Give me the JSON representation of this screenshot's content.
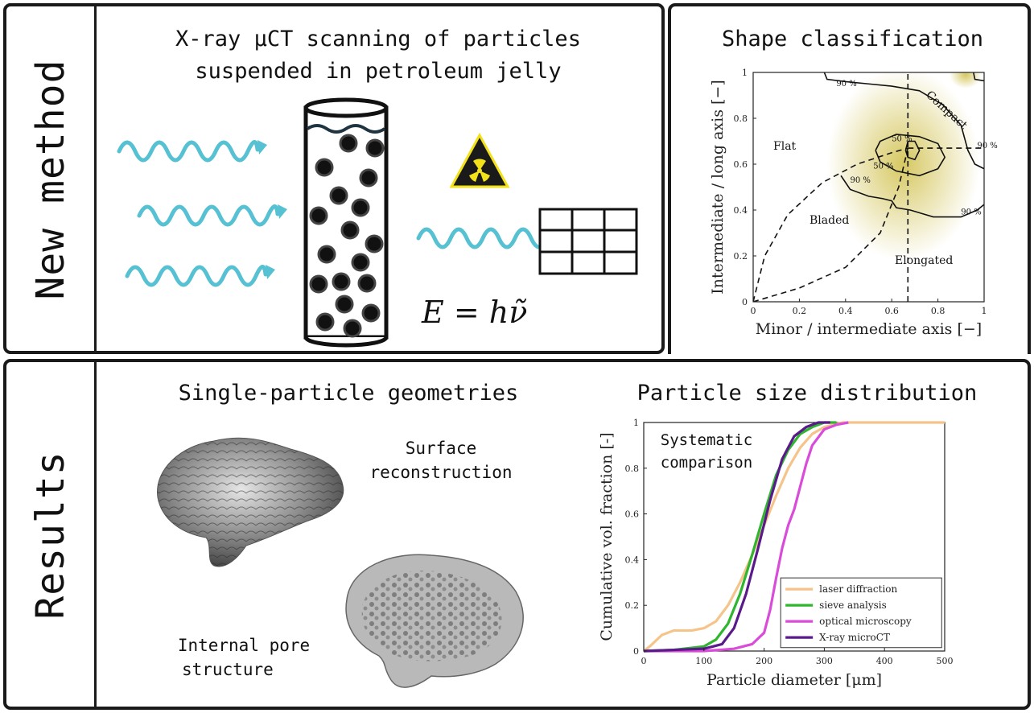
{
  "top_left": {
    "side_label": "New method",
    "heading_line1": "X-ray μCT scanning of particles",
    "heading_line2": "suspended in petroleum jelly",
    "formula": "E = hν̃"
  },
  "top_right": {
    "heading": "Shape classification",
    "region_labels": {
      "flat": "Flat",
      "compact": "Compact",
      "bladed": "Bladed",
      "elongated": "Elongated"
    },
    "contour_labels": {
      "c90": "90 %",
      "c50": "50 %"
    }
  },
  "bottom": {
    "side_label": "Results",
    "geometries_heading": "Single-particle geometries",
    "surface_line1": "Surface",
    "surface_line2": "reconstruction",
    "pore_line1": "Internal pore",
    "pore_line2": "structure",
    "psd_heading": "Particle size distribution",
    "annotation_line1": "Systematic",
    "annotation_line2": "comparison"
  },
  "chart_data": [
    {
      "type": "scatter",
      "title": "Shape classification",
      "xlabel": "Minor / intermediate axis [−]",
      "ylabel": "Intermediate / long axis [−]",
      "xlim": [
        0,
        1
      ],
      "ylim": [
        0,
        1
      ],
      "xticks": [
        "0",
        "0.2",
        "0.4",
        "0.6",
        "0.8",
        "1"
      ],
      "yticks": [
        "0",
        "0.2",
        "0.4",
        "0.6",
        "0.8",
        "1"
      ],
      "grid": false,
      "boundaries": {
        "vertical_x": 0.67,
        "horizontal_y": 0.67,
        "curve_flat_bladed": {
          "x": [
            0.0,
            0.05,
            0.15,
            0.3,
            0.45,
            0.6,
            0.67
          ],
          "y": [
            0.0,
            0.2,
            0.38,
            0.52,
            0.6,
            0.65,
            0.67
          ]
        },
        "curve_bladed_elongated": {
          "x": [
            0.0,
            0.2,
            0.4,
            0.55,
            0.63,
            0.67
          ],
          "y": [
            0.0,
            0.06,
            0.15,
            0.3,
            0.5,
            0.67
          ]
        }
      },
      "density_peak": {
        "x": 0.65,
        "y": 0.6
      }
    },
    {
      "type": "line",
      "title": "Particle size distribution",
      "xlabel": "Particle diameter [μm]",
      "ylabel": "Cumulative vol. fraction [-]",
      "xlim": [
        0,
        500
      ],
      "ylim": [
        0,
        1
      ],
      "xticks": [
        "0",
        "100",
        "200",
        "300",
        "400",
        "500"
      ],
      "yticks": [
        "0",
        "0.2",
        "0.4",
        "0.6",
        "0.8",
        "1"
      ],
      "legend_position": "bottom-right",
      "series": [
        {
          "name": "laser diffraction",
          "color": "#f5c48a",
          "x": [
            0,
            10,
            30,
            50,
            80,
            100,
            120,
            140,
            160,
            180,
            200,
            220,
            240,
            260,
            280,
            300,
            330,
            360,
            400,
            500
          ],
          "y": [
            0,
            0.02,
            0.07,
            0.09,
            0.09,
            0.1,
            0.13,
            0.2,
            0.3,
            0.42,
            0.55,
            0.68,
            0.8,
            0.89,
            0.95,
            0.98,
            1.0,
            1.0,
            1.0,
            1.0
          ]
        },
        {
          "name": "sieve analysis",
          "color": "#2fb52f",
          "x": [
            0,
            50,
            100,
            120,
            140,
            160,
            180,
            200,
            220,
            240,
            260,
            280,
            300,
            320
          ],
          "y": [
            0,
            0.005,
            0.02,
            0.05,
            0.12,
            0.25,
            0.42,
            0.6,
            0.77,
            0.88,
            0.95,
            0.98,
            1.0,
            1.0
          ]
        },
        {
          "name": "optical microscopy",
          "color": "#d94bd9",
          "x": [
            0,
            100,
            150,
            180,
            200,
            210,
            220,
            230,
            240,
            250,
            260,
            270,
            280,
            300,
            320,
            340
          ],
          "y": [
            0,
            0.0,
            0.01,
            0.03,
            0.08,
            0.18,
            0.32,
            0.45,
            0.55,
            0.62,
            0.72,
            0.82,
            0.9,
            0.97,
            0.99,
            1.0
          ]
        },
        {
          "name": "X-ray microCT",
          "color": "#5a1a8a",
          "x": [
            0,
            50,
            100,
            130,
            150,
            170,
            190,
            210,
            230,
            250,
            270,
            290,
            310
          ],
          "y": [
            0,
            0.005,
            0.01,
            0.03,
            0.1,
            0.25,
            0.45,
            0.66,
            0.84,
            0.94,
            0.98,
            1.0,
            1.0
          ]
        }
      ]
    }
  ],
  "colors": {
    "wave": "#56c1d3",
    "border": "#1a1a1a",
    "hazard_yellow": "#f3e11a",
    "density": "#d4c55a"
  },
  "icons": [
    "wave-arrow-icon",
    "radiation-hazard-icon",
    "detector-grid-icon"
  ]
}
